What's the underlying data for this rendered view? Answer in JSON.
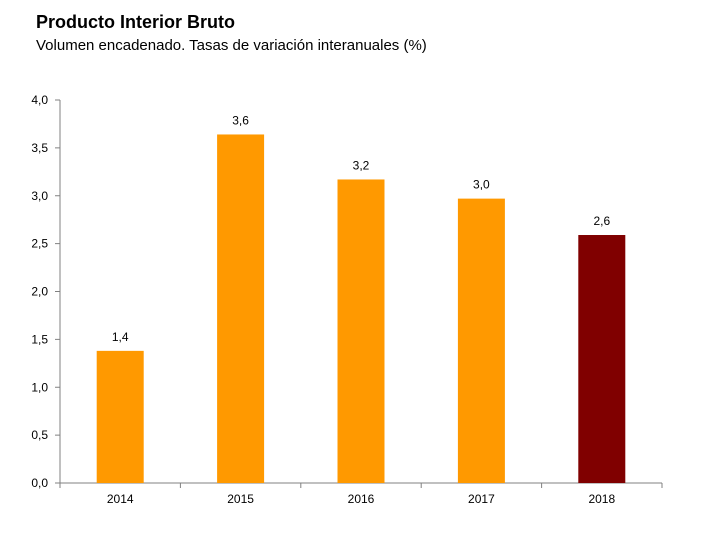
{
  "chart_data": {
    "type": "bar",
    "title": "Producto Interior Bruto",
    "subtitle": "Volumen encadenado. Tasas de variación interanuales (%)",
    "xlabel": "",
    "ylabel": "",
    "categories": [
      "2014",
      "2015",
      "2016",
      "2017",
      "2018"
    ],
    "values": [
      1.38,
      3.64,
      3.17,
      2.97,
      2.59
    ],
    "value_labels": [
      "1,4",
      "3,6",
      "3,2",
      "3,0",
      "2,6"
    ],
    "bar_colors": [
      "#FF9900",
      "#FF9900",
      "#FF9900",
      "#FF9900",
      "#800000"
    ],
    "ylim": [
      0,
      4
    ],
    "yticks": [
      0,
      0.5,
      1,
      1.5,
      2,
      2.5,
      3,
      3.5,
      4
    ],
    "ytick_labels": [
      "0,0",
      "0,5",
      "1,0",
      "1,5",
      "2,0",
      "2,5",
      "3,0",
      "3,5",
      "4,0"
    ],
    "grid": false,
    "legend": "none"
  }
}
